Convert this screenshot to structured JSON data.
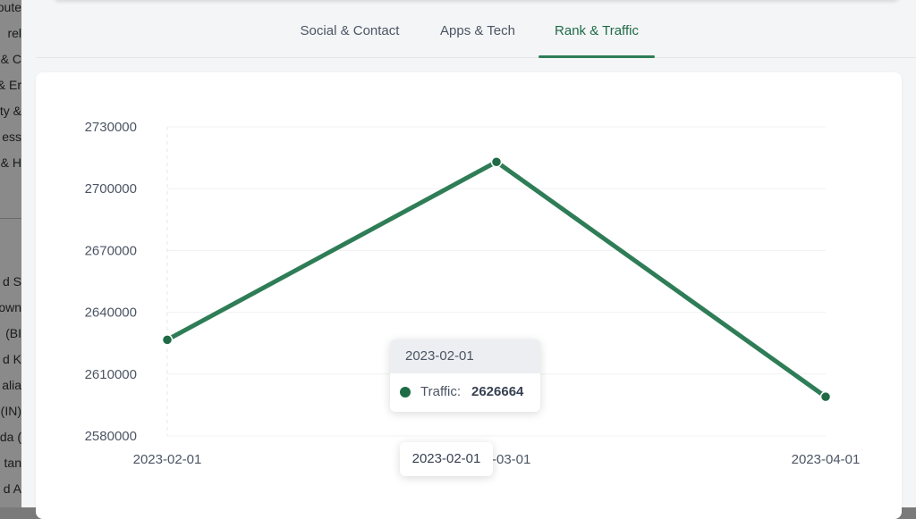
{
  "sidebar": {
    "fragments": [
      "oute",
      "rel",
      "e & C",
      "& Er",
      "ty &",
      "ess",
      "& H",
      "d S",
      "own",
      "(BI",
      "d K",
      "alia",
      "(IN)",
      "da (",
      "tan",
      "d A"
    ]
  },
  "tabs": [
    {
      "label": "Social & Contact",
      "active": false
    },
    {
      "label": "Apps & Tech",
      "active": false
    },
    {
      "label": "Rank & Traffic",
      "active": true
    }
  ],
  "chart_data": {
    "type": "line",
    "x": [
      "2023-02-01",
      "2023-03-01",
      "2023-04-01"
    ],
    "series": [
      {
        "name": "Traffic",
        "values": [
          2626664,
          2713000,
          2599000
        ],
        "color": "#2e7d57"
      }
    ],
    "ylim": [
      2580000,
      2730000
    ],
    "yticks": [
      2730000,
      2700000,
      2670000,
      2640000,
      2610000,
      2580000
    ],
    "grid": true,
    "xtick_labels": [
      "2023-02-01",
      "2023-03-01",
      "2023-04-01"
    ]
  },
  "tooltip": {
    "date": "2023-02-01",
    "series_label": "Traffic:",
    "value": "2626664"
  },
  "x_axis_tooltip": "2023-02-01",
  "colors": {
    "accent": "#1f6b45",
    "line": "#2e7d57"
  }
}
